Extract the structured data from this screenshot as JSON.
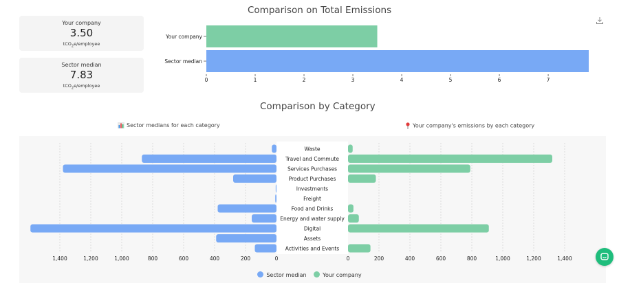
{
  "kpis": [
    {
      "label": "Your company",
      "value": "3.50",
      "unit_main": "tCO",
      "unit_sub": "2",
      "unit_tail": "e/employee"
    },
    {
      "label": "Sector median",
      "value": "7.83",
      "unit_main": "tCO",
      "unit_sub": "2",
      "unit_tail": "e/employee"
    }
  ],
  "hints": {
    "sector": "Sector medians for each category",
    "company": "Your company's emissions by each category",
    "sector_icon": "bar-chart-emoji-icon",
    "company_icon": "pin-emoji-icon"
  },
  "legend": {
    "sector": "Sector median",
    "company": "Your company"
  },
  "colors": {
    "sector": "#78a9f5",
    "company": "#7dcea5",
    "chat": "#1fbd7c"
  },
  "chart_data": [
    {
      "type": "bar",
      "orientation": "horizontal",
      "title": "Comparison on Total Emissions",
      "categories": [
        "Your company",
        "Sector median"
      ],
      "values": [
        3.5,
        7.83
      ],
      "colors": [
        "#7dcea5",
        "#78a9f5"
      ],
      "xlim": [
        0,
        7.83
      ],
      "xticks": [
        0,
        1,
        2,
        3,
        4,
        5,
        6,
        7
      ],
      "grid": false
    },
    {
      "type": "bar",
      "orientation": "horizontal",
      "title": "Comparison by Category",
      "categories": [
        "Waste",
        "Travel and Commute",
        "Services Purchases",
        "Product Purchases",
        "Investments",
        "Freight",
        "Food and Drinks",
        "Energy and water supply",
        "Digital",
        "Assets",
        "Activities and Events"
      ],
      "series": [
        {
          "name": "Sector median",
          "values": [
            30,
            870,
            1380,
            280,
            5,
            8,
            380,
            160,
            1590,
            390,
            140
          ]
        },
        {
          "name": "Your company",
          "values": [
            30,
            1320,
            790,
            180,
            0,
            0,
            35,
            70,
            910,
            0,
            145
          ]
        }
      ],
      "left_ticks": [
        1400,
        1200,
        1000,
        800,
        600,
        400,
        200,
        0
      ],
      "left_tick_labels": [
        "1,400",
        "1,200",
        "1,000",
        "800",
        "600",
        "400",
        "200",
        "0"
      ],
      "right_ticks": [
        0,
        200,
        400,
        600,
        800,
        1000,
        1200,
        1400
      ],
      "right_tick_labels": [
        "0",
        "200",
        "400",
        "600",
        "800",
        "1,000",
        "1,200",
        "1,400"
      ],
      "grid": true,
      "legend_position": "bottom"
    }
  ]
}
